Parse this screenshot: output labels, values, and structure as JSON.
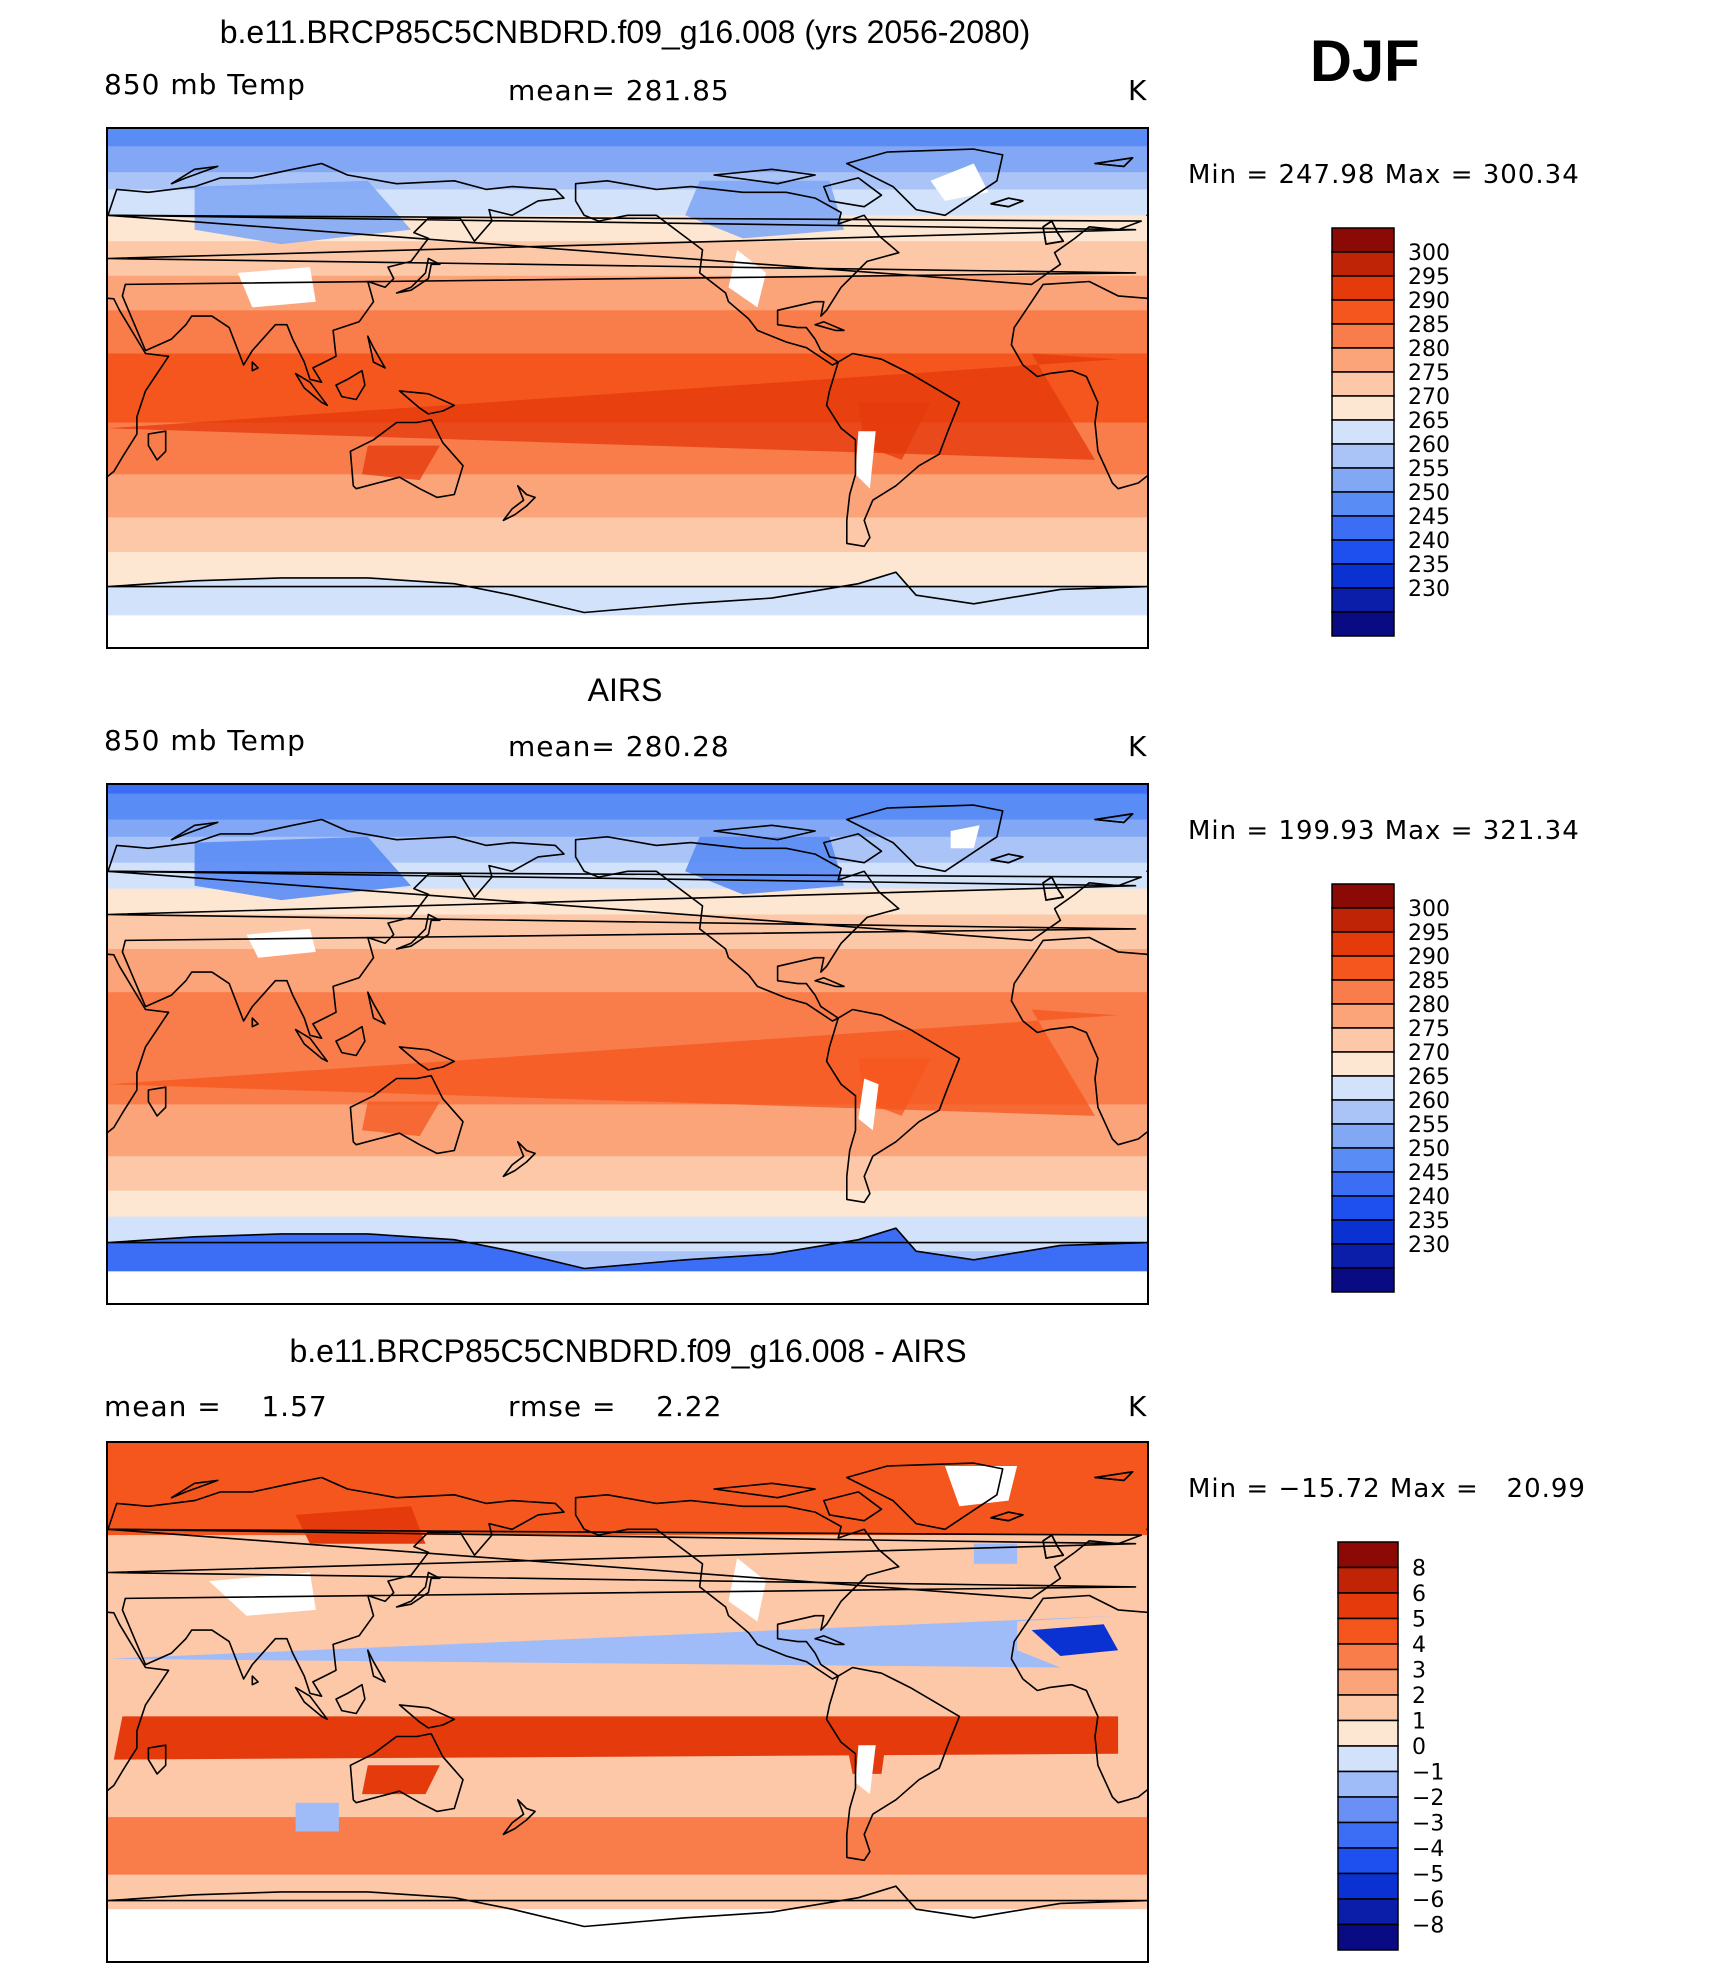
{
  "season": "DJF",
  "colors": {
    "coast": "#000000",
    "land_missing": "#ffffff",
    "temp_scale": [
      "#0a0a82",
      "#0a1eaa",
      "#0a32d2",
      "#1e50f0",
      "#3c6ef5",
      "#5a8cf5",
      "#82a8f5",
      "#aac4f8",
      "#d2e2fa",
      "#fde7d2",
      "#fcc8a8",
      "#fba47a",
      "#f97d4a",
      "#f5561e",
      "#e43a0c",
      "#bf2406",
      "#8c0a06"
    ],
    "diff_scale": [
      "#0a0a82",
      "#0a1eaa",
      "#0a32d2",
      "#1e50f0",
      "#3c6ef5",
      "#6a90f5",
      "#a0bcf8",
      "#d2e2fa",
      "#fde7d2",
      "#fcc8a8",
      "#fba47a",
      "#f97d4a",
      "#f5561e",
      "#e43a0c",
      "#bf2406",
      "#8c0a06"
    ]
  },
  "chart_data": [
    {
      "type": "heatmap",
      "title": "b.e11.BRCP85C5CNBDRD.f09_g16.008 (yrs 2056-2080)",
      "variable": "850 mb Temp",
      "mean_text": "mean= 281.85",
      "units": "K",
      "min_max_text": "Min = 247.98 Max = 300.34",
      "min": 247.98,
      "max": 300.34,
      "colorbar_levels": [
        "300",
        "295",
        "290",
        "285",
        "280",
        "275",
        "270",
        "265",
        "260",
        "255",
        "250",
        "245",
        "240",
        "235",
        "230"
      ],
      "field": {
        "equator": 290,
        "pole_n": 255,
        "pole_s": 262,
        "antarctic_land": 266
      }
    },
    {
      "type": "heatmap",
      "title": "AIRS",
      "variable": "850 mb Temp",
      "mean_text": "mean= 280.28",
      "units": "K",
      "min_max_text": "Min = 199.93 Max = 321.34",
      "min": 199.93,
      "max": 321.34,
      "colorbar_levels": [
        "300",
        "295",
        "290",
        "285",
        "280",
        "275",
        "270",
        "265",
        "260",
        "255",
        "250",
        "245",
        "240",
        "235",
        "230"
      ],
      "field": {
        "equator": 288,
        "pole_n": 252,
        "pole_s": 258,
        "antarctic_land": 247
      }
    },
    {
      "type": "heatmap",
      "title": "b.e11.BRCP85C5CNBDRD.f09_g16.008 - AIRS",
      "mean_text": "mean =    1.57",
      "rmse_text": "rmse =    2.22",
      "units": "K",
      "min_max_text": "Min = −15.72 Max =   20.99",
      "min": -15.72,
      "max": 20.99,
      "colorbar_levels": [
        "8",
        "6",
        "5",
        "4",
        "3",
        "2",
        "1",
        "0",
        "−1",
        "−2",
        "−3",
        "−4",
        "−5",
        "−6",
        "−8"
      ],
      "field": {
        "base": 2
      }
    }
  ]
}
